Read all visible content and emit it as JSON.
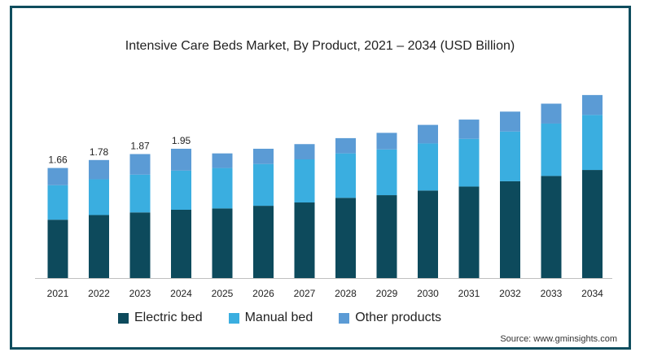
{
  "chart_data": {
    "type": "bar",
    "stacked": true,
    "title": "Intensive Care Beds Market, By Product, 2021 – 2034 (USD Billion)",
    "categories": [
      "2021",
      "2022",
      "2023",
      "2024",
      "2025",
      "2026",
      "2027",
      "2028",
      "2029",
      "2030",
      "2031",
      "2032",
      "2033",
      "2034"
    ],
    "series": [
      {
        "name": "Electric bed",
        "color": "#0d4a5c",
        "values": [
          0.88,
          0.95,
          0.99,
          1.03,
          1.05,
          1.09,
          1.14,
          1.21,
          1.25,
          1.32,
          1.38,
          1.46,
          1.54,
          1.63
        ]
      },
      {
        "name": "Manual bed",
        "color": "#3aaee0",
        "values": [
          0.52,
          0.54,
          0.57,
          0.59,
          0.61,
          0.63,
          0.65,
          0.67,
          0.69,
          0.71,
          0.72,
          0.75,
          0.79,
          0.83
        ]
      },
      {
        "name": "Other products",
        "color": "#5b9bd5",
        "values": [
          0.26,
          0.29,
          0.31,
          0.33,
          0.22,
          0.23,
          0.23,
          0.23,
          0.25,
          0.28,
          0.29,
          0.3,
          0.3,
          0.3
        ]
      }
    ],
    "data_labels": [
      "1.66",
      "1.78",
      "1.87",
      "1.95"
    ],
    "ylim": [
      0,
      3.2
    ],
    "grid": false,
    "legend_position": "bottom"
  },
  "source_text": "Source: www.gminsights.com"
}
